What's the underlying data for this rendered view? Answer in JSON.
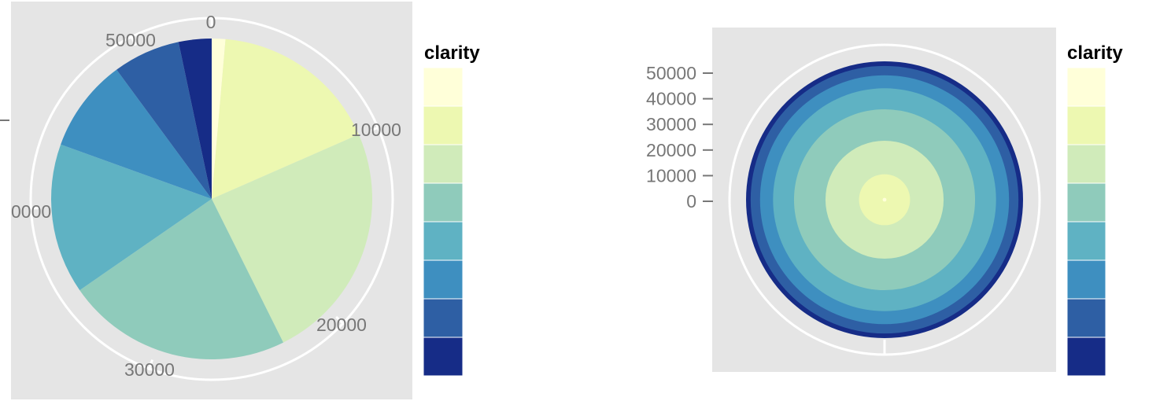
{
  "palette": [
    "#ffffd9",
    "#edf8b1",
    "#d0ebba",
    "#8fcbbb",
    "#5fb2c3",
    "#3e8fc0",
    "#2e5fa4",
    "#162c87"
  ],
  "chart_data": [
    {
      "type": "pie",
      "coord": "polar-theta",
      "theta_range": [
        0,
        53940
      ],
      "theta_tick_labels": [
        "0",
        "10000",
        "20000",
        "30000",
        "50000",
        "0000"
      ],
      "values": [
        741,
        9194,
        13065,
        12258,
        8171,
        5066,
        3655,
        1790
      ],
      "legend_title": "clarity",
      "legend_position": "right",
      "panel_background": "#e5e5e5",
      "grid": true
    },
    {
      "type": "bar",
      "coord": "polar-radius",
      "y_tick_labels": [
        "50000",
        "40000",
        "30000",
        "20000",
        "10000",
        "0"
      ],
      "y_ticks": [
        50000,
        40000,
        30000,
        20000,
        10000,
        0
      ],
      "ylim": [
        0,
        53940
      ],
      "values": [
        741,
        9194,
        13065,
        12258,
        8171,
        5066,
        3655,
        1790
      ],
      "legend_title": "clarity",
      "legend_position": "right",
      "panel_background": "#e5e5e5",
      "grid": true
    }
  ]
}
